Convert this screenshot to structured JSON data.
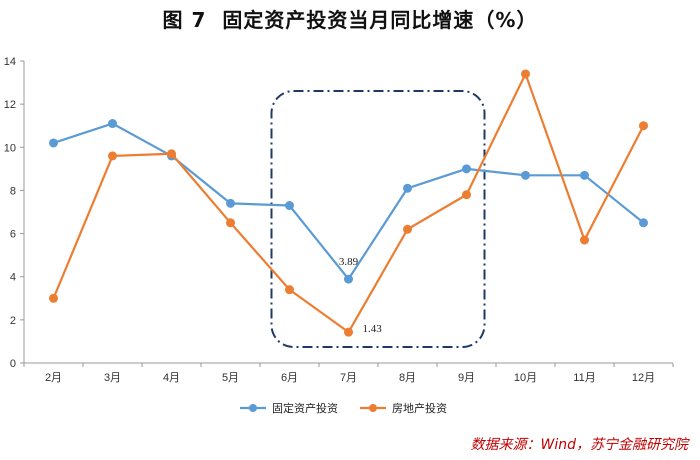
{
  "title": {
    "figure_label": "图 7",
    "text": "固定资产投资当月同比增速（%）"
  },
  "source": "数据来源：Wind，苏宁金融研究院",
  "colors": {
    "series_fixed": "#5b9bd5",
    "series_realestate": "#ed7d31",
    "highlight_box": "#1f3864",
    "axis": "#999999"
  },
  "chart_data": {
    "type": "line",
    "categories": [
      "2月",
      "3月",
      "4月",
      "5月",
      "6月",
      "7月",
      "8月",
      "9月",
      "10月",
      "11月",
      "12月"
    ],
    "series": [
      {
        "name": "固定资产投资",
        "values": [
          10.2,
          11.1,
          9.6,
          7.4,
          7.3,
          3.89,
          8.1,
          9.0,
          8.7,
          8.7,
          6.5
        ]
      },
      {
        "name": "房地产投资",
        "values": [
          3.0,
          9.6,
          9.7,
          6.5,
          3.4,
          1.43,
          6.2,
          7.8,
          13.4,
          5.7,
          11.0
        ]
      }
    ],
    "data_labels": [
      {
        "series": 0,
        "index": 5,
        "text": "3.89"
      },
      {
        "series": 1,
        "index": 5,
        "text": "1.43"
      }
    ],
    "yticks": [
      "0",
      "2",
      "4",
      "6",
      "8",
      "10",
      "12",
      "14"
    ],
    "ylim": [
      0,
      14
    ],
    "grid": false,
    "legend_position": "bottom",
    "highlight": {
      "style": "dash-dot rounded box",
      "from_category": "6月",
      "to_category": "9月"
    }
  }
}
